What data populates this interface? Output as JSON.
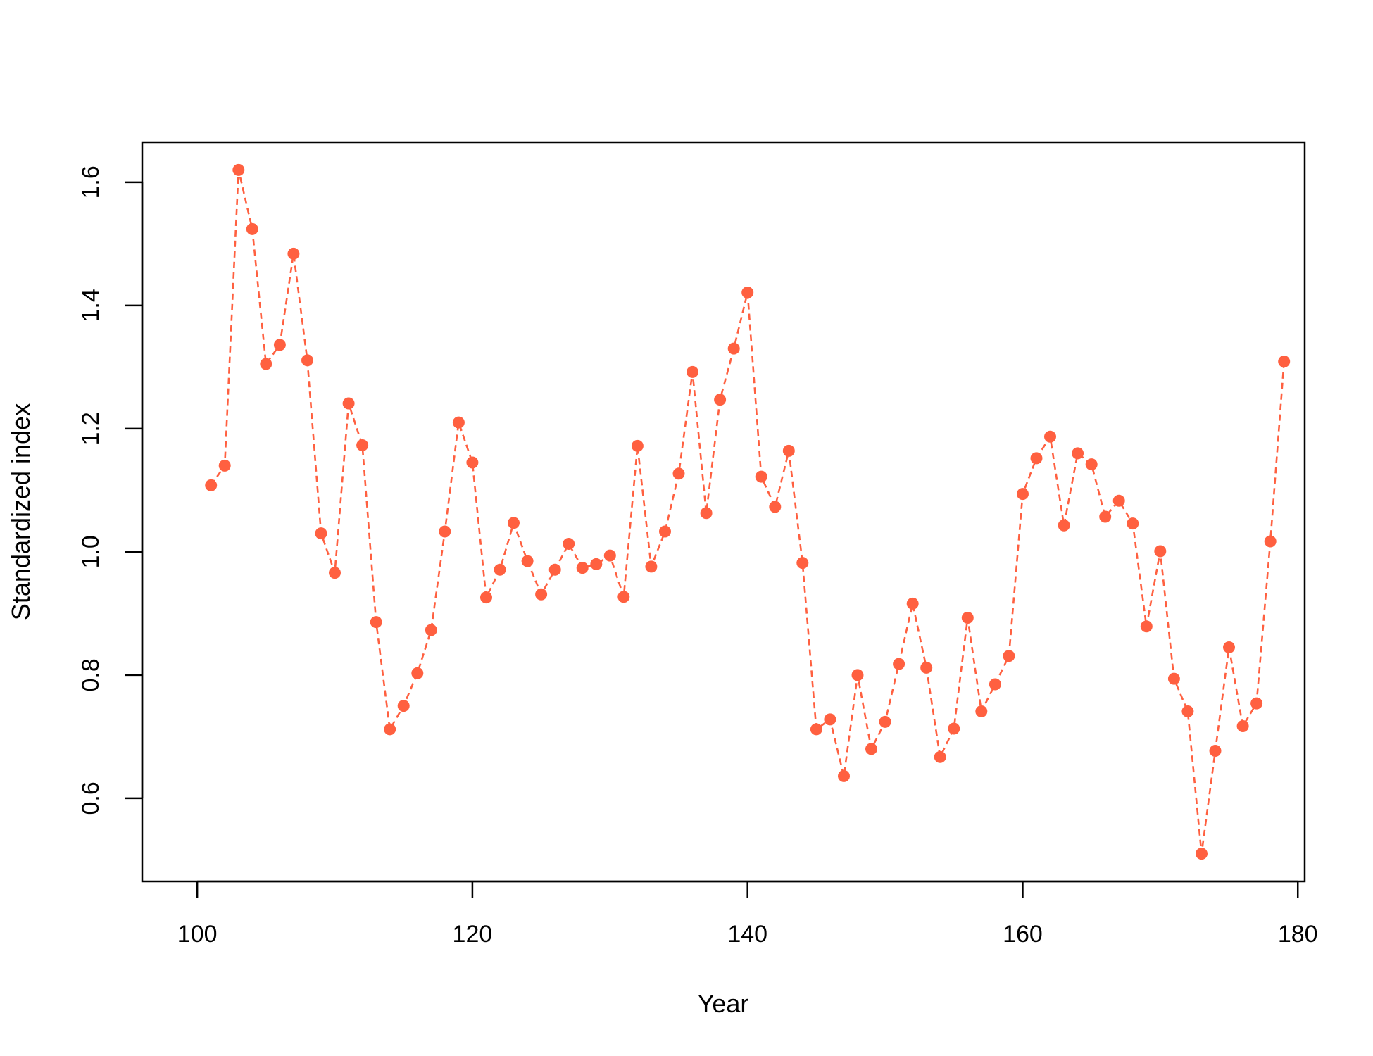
{
  "chart_data": {
    "type": "line",
    "title": "",
    "xlabel": "Year",
    "ylabel": "Standardized index",
    "xlim": [
      96,
      180.5
    ],
    "ylim": [
      0.465,
      1.665
    ],
    "x_ticks": [
      "100",
      "120",
      "140",
      "160",
      "180"
    ],
    "x_tick_values": [
      100,
      120,
      140,
      160,
      180
    ],
    "y_ticks": [
      "0.6",
      "0.8",
      "1.0",
      "1.2",
      "1.4",
      "1.6"
    ],
    "y_tick_values": [
      0.6,
      0.8,
      1.0,
      1.2,
      1.4,
      1.6
    ],
    "grid": false,
    "line_style": "dashed",
    "marker": "filled-circle",
    "color": "#FF6040",
    "series": [
      {
        "x": [
          101,
          102,
          103,
          104,
          105,
          106,
          107,
          108,
          109,
          110,
          111,
          112,
          113,
          114,
          115,
          116,
          117,
          118,
          119,
          120,
          121,
          122,
          123,
          124,
          125,
          126,
          127,
          128,
          129,
          130,
          131,
          132,
          133,
          134,
          135,
          136,
          137,
          138,
          139,
          140,
          141,
          142,
          143,
          144,
          145,
          146,
          147,
          148,
          149,
          150,
          151,
          152,
          153,
          154,
          155,
          156,
          157,
          158,
          159,
          160,
          161,
          162,
          163,
          164,
          165,
          166,
          167,
          168,
          169,
          170,
          171,
          172,
          173,
          174,
          175,
          176,
          177,
          178,
          179
        ],
        "values": [
          1.108,
          1.14,
          1.62,
          1.524,
          1.305,
          1.336,
          1.484,
          1.311,
          1.03,
          0.966,
          1.241,
          1.173,
          0.886,
          0.712,
          0.75,
          0.803,
          0.873,
          1.033,
          1.21,
          1.145,
          0.926,
          0.971,
          1.047,
          0.985,
          0.931,
          0.971,
          1.013,
          0.974,
          0.98,
          0.994,
          0.927,
          1.172,
          0.976,
          1.033,
          1.127,
          1.292,
          1.063,
          1.247,
          1.33,
          1.421,
          1.122,
          1.073,
          1.164,
          0.982,
          0.712,
          0.728,
          0.636,
          0.8,
          0.68,
          0.724,
          0.818,
          0.916,
          0.812,
          0.667,
          0.713,
          0.893,
          0.741,
          0.785,
          0.831,
          1.094,
          1.152,
          1.187,
          1.043,
          1.16,
          1.142,
          1.057,
          1.083,
          1.046,
          0.879,
          1.001,
          0.794,
          0.741,
          0.51,
          0.677,
          0.845,
          0.717,
          0.754,
          1.017,
          1.309
        ]
      }
    ]
  }
}
